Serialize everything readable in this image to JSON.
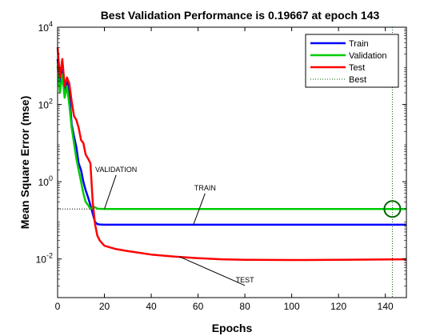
{
  "chart_data": {
    "type": "line",
    "title": "Best Validation Performance is 0.19667 at epoch 143",
    "xlabel": "Epochs",
    "ylabel": "Mean Square Error  (mse)",
    "xlim": [
      0,
      149
    ],
    "ylim": [
      0.001,
      10000
    ],
    "yscale": "log",
    "x_ticks": [
      0,
      20,
      40,
      60,
      80,
      100,
      120,
      140
    ],
    "y_ticks": [
      {
        "value": 10000,
        "base": "10",
        "exp": "4"
      },
      {
        "value": 100,
        "base": "10",
        "exp": "2"
      },
      {
        "value": 1,
        "base": "10",
        "exp": "0"
      },
      {
        "value": 0.01,
        "base": "10",
        "exp": "-2"
      }
    ],
    "grid": false,
    "legend": "top-right",
    "series": [
      {
        "name": "Train",
        "color": "#0000ff",
        "x": [
          0,
          1,
          2,
          3,
          4,
          5,
          6,
          7,
          8,
          9,
          10,
          11,
          12,
          13,
          14,
          15,
          16,
          17,
          18,
          20,
          30,
          60,
          100,
          149
        ],
        "y": [
          1500,
          300,
          800,
          200,
          400,
          200,
          30,
          15,
          8,
          3,
          2,
          1,
          0.6,
          0.4,
          0.25,
          0.15,
          0.09,
          0.08,
          0.078,
          0.077,
          0.077,
          0.077,
          0.077,
          0.077
        ]
      },
      {
        "name": "Validation",
        "color": "#00cc00",
        "x": [
          0,
          1,
          2,
          3,
          4,
          5,
          6,
          7,
          8,
          9,
          10,
          11,
          12,
          13,
          14,
          15,
          16,
          17,
          18,
          20,
          40,
          80,
          120,
          143,
          149
        ],
        "y": [
          1000,
          200,
          600,
          150,
          300,
          100,
          25,
          10,
          4,
          2,
          1,
          0.5,
          0.3,
          0.25,
          0.2,
          0.21,
          0.22,
          0.2,
          0.198,
          0.197,
          0.197,
          0.197,
          0.197,
          0.19667,
          0.197
        ]
      },
      {
        "name": "Test",
        "color": "#ff0000",
        "x": [
          0,
          1,
          2,
          3,
          4,
          5,
          6,
          7,
          8,
          9,
          10,
          11,
          12,
          13,
          14,
          15,
          16,
          17,
          18,
          20,
          25,
          30,
          40,
          50,
          60,
          70,
          80,
          100,
          120,
          149
        ],
        "y": [
          3000,
          500,
          1500,
          300,
          500,
          350,
          120,
          50,
          40,
          25,
          12,
          10,
          5,
          4,
          3,
          0.3,
          0.08,
          0.04,
          0.03,
          0.022,
          0.018,
          0.016,
          0.013,
          0.0115,
          0.0105,
          0.0098,
          0.0095,
          0.0094,
          0.0095,
          0.0098
        ]
      }
    ],
    "best": {
      "name": "Best",
      "epoch": 143,
      "value": 0.19667,
      "color": "#006600"
    },
    "annotations": [
      {
        "text": "VALIDATION",
        "target_x": 20,
        "target_y": 0.197,
        "label_x": 25,
        "label_y": 1.8
      },
      {
        "text": "TRAIN",
        "target_x": 58,
        "target_y": 0.077,
        "label_x": 63,
        "label_y": 0.6
      },
      {
        "text": "TEST",
        "target_x": 52,
        "target_y": 0.0115,
        "label_x": 80,
        "label_y": 0.0025
      }
    ]
  }
}
